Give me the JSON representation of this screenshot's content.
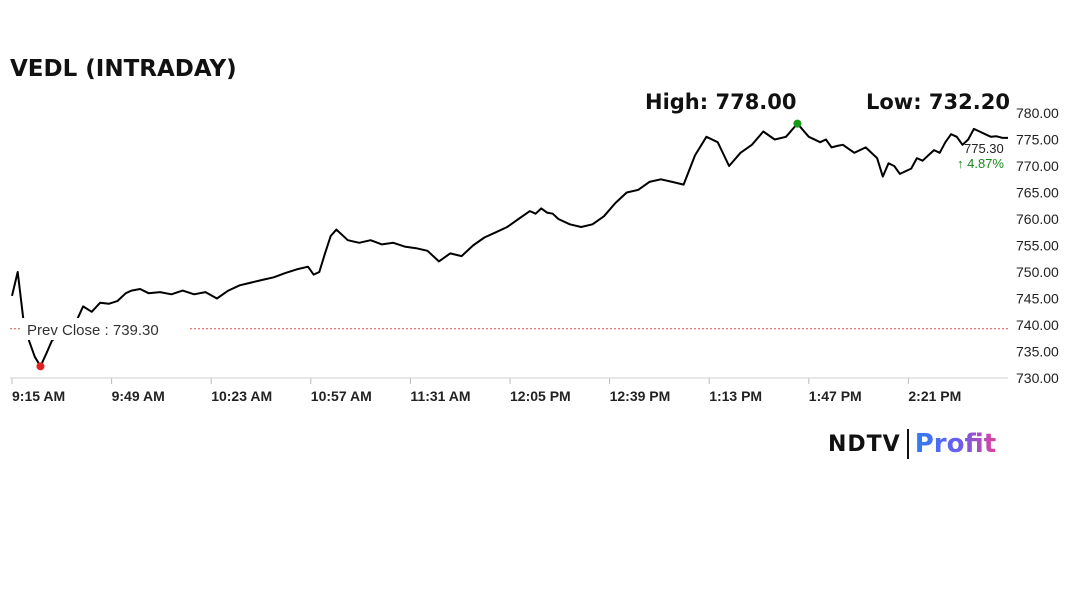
{
  "chart_data": {
    "type": "line",
    "title": "VEDL (INTRADAY)",
    "high_label": "High: 778.00",
    "low_label": "Low: 732.20",
    "prev_close_label": "Prev Close : 739.30",
    "prev_close": 739.3,
    "last_price_label": "775.30",
    "change_label": "↑ 4.87%",
    "ylim": [
      730,
      780
    ],
    "y_ticks": [
      "730.00",
      "735.00",
      "740.00",
      "745.00",
      "750.00",
      "755.00",
      "760.00",
      "765.00",
      "770.00",
      "775.00",
      "780.00"
    ],
    "x_ticks": [
      "9:15 AM",
      "9:49 AM",
      "10:23 AM",
      "10:57 AM",
      "11:31 AM",
      "12:05 PM",
      "12:39 PM",
      "1:13 PM",
      "1:47 PM",
      "2:21 PM"
    ],
    "xlim": [
      0,
      350
    ],
    "series": [
      {
        "x": [
          0,
          2,
          4,
          6,
          8,
          10,
          12,
          14,
          17,
          19,
          22,
          25,
          28,
          31,
          34,
          37,
          40,
          42,
          45,
          48,
          52,
          56,
          60,
          64,
          68,
          72,
          76,
          80,
          84,
          88,
          92,
          96,
          100,
          104,
          106,
          108,
          110,
          112,
          114,
          118,
          122,
          126,
          130,
          134,
          138,
          142,
          146,
          150,
          154,
          158,
          162,
          166,
          170,
          174,
          178,
          182,
          184,
          186,
          188,
          190,
          192,
          196,
          200,
          204,
          208,
          212,
          216,
          220,
          224,
          228,
          232,
          236,
          240,
          244,
          248,
          252,
          256,
          260,
          264,
          268,
          272,
          276,
          280,
          284,
          286,
          288,
          290,
          292,
          296,
          300,
          304,
          306,
          308,
          310,
          312,
          316,
          318,
          320,
          322,
          324,
          326,
          328,
          330,
          332,
          334,
          336,
          338,
          340,
          342,
          344,
          346,
          348,
          350
        ],
        "y": [
          745.5,
          750.0,
          741.0,
          737.0,
          734.0,
          732.2,
          734.5,
          737.0,
          738.5,
          739.0,
          740.0,
          743.5,
          742.5,
          744.2,
          744.0,
          744.5,
          746.0,
          746.5,
          746.8,
          746.0,
          746.2,
          745.8,
          746.5,
          745.8,
          746.2,
          745.0,
          746.5,
          747.5,
          748.0,
          748.5,
          749.0,
          749.8,
          750.5,
          751.0,
          749.5,
          750.0,
          753.5,
          756.8,
          758.0,
          756.0,
          755.5,
          756.0,
          755.2,
          755.5,
          754.8,
          754.5,
          754.0,
          752.0,
          753.5,
          753.0,
          755.0,
          756.5,
          757.5,
          758.5,
          760.0,
          761.5,
          761.0,
          762.0,
          761.2,
          761.0,
          760.0,
          759.0,
          758.5,
          759.0,
          760.5,
          763.0,
          765.0,
          765.5,
          767.0,
          767.5,
          767.0,
          766.5,
          772.0,
          775.5,
          774.5,
          770.0,
          772.5,
          774.0,
          776.5,
          775.0,
          775.5,
          778.0,
          775.5,
          774.5,
          775.0,
          773.5,
          773.8,
          774.0,
          772.5,
          773.5,
          771.5,
          768.0,
          770.5,
          770.0,
          768.5,
          769.5,
          771.5,
          771.0,
          772.0,
          773.0,
          772.5,
          774.5,
          776.0,
          775.5,
          774.0,
          775.0,
          777.0,
          776.5,
          776.0,
          775.5,
          775.6,
          775.3,
          775.3
        ]
      }
    ]
  },
  "logo": {
    "brand": "NDTV",
    "product": "Profit"
  }
}
